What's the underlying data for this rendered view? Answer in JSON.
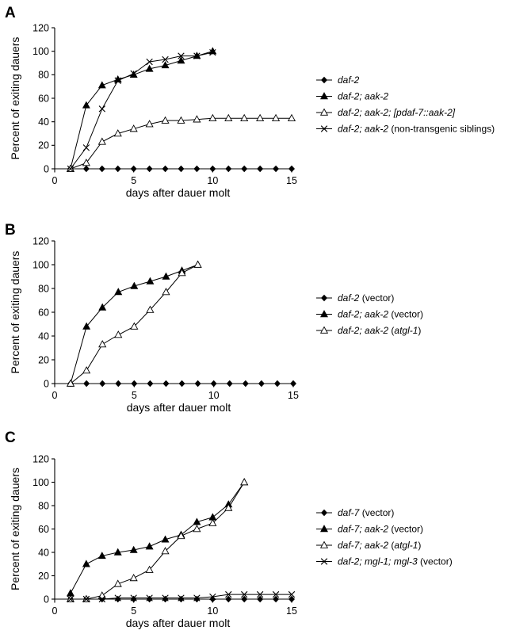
{
  "chart_data": [
    {
      "panel": "A",
      "type": "line",
      "ylabel": "Percent of exiting dauers",
      "xlabel": "days after dauer molt",
      "xlim": [
        0,
        15
      ],
      "ylim": [
        0,
        120
      ],
      "x_ticks": [
        0,
        5,
        10,
        15
      ],
      "y_ticks": [
        0,
        20,
        40,
        60,
        80,
        100,
        120
      ],
      "series": [
        {
          "marker": "diamond",
          "legend": [
            {
              "text": "daf-2",
              "italic": true
            }
          ],
          "points": [
            [
              1,
              0
            ],
            [
              2,
              0
            ],
            [
              3,
              0
            ],
            [
              4,
              0
            ],
            [
              5,
              0
            ],
            [
              6,
              0
            ],
            [
              7,
              0
            ],
            [
              8,
              0
            ],
            [
              9,
              0
            ],
            [
              10,
              0
            ],
            [
              11,
              0
            ],
            [
              12,
              0
            ],
            [
              13,
              0
            ],
            [
              14,
              0
            ],
            [
              15,
              0
            ]
          ]
        },
        {
          "marker": "triangle-filled",
          "legend": [
            {
              "text": "daf-2; aak-2",
              "italic": true
            }
          ],
          "points": [
            [
              1,
              0
            ],
            [
              2,
              54
            ],
            [
              3,
              71
            ],
            [
              4,
              76
            ],
            [
              5,
              80
            ],
            [
              6,
              85
            ],
            [
              7,
              88
            ],
            [
              8,
              92
            ],
            [
              9,
              96
            ],
            [
              10,
              100
            ]
          ]
        },
        {
          "marker": "triangle-open",
          "legend": [
            {
              "text": "daf-2; aak-2; [pdaf-7::aak-2]",
              "italic": true
            }
          ],
          "points": [
            [
              1,
              0
            ],
            [
              2,
              5
            ],
            [
              3,
              23
            ],
            [
              4,
              30
            ],
            [
              5,
              34
            ],
            [
              6,
              38
            ],
            [
              7,
              41
            ],
            [
              8,
              41
            ],
            [
              9,
              42
            ],
            [
              10,
              43
            ],
            [
              11,
              43
            ],
            [
              12,
              43
            ],
            [
              13,
              43
            ],
            [
              14,
              43
            ],
            [
              15,
              43
            ]
          ]
        },
        {
          "marker": "x",
          "legend": [
            {
              "text": "daf-2; aak-2",
              "italic": true
            },
            {
              "text": " (non-transgenic siblings)",
              "italic": false
            }
          ],
          "points": [
            [
              1,
              0
            ],
            [
              2,
              18
            ],
            [
              3,
              51
            ],
            [
              4,
              75
            ],
            [
              5,
              81
            ],
            [
              6,
              91
            ],
            [
              7,
              93
            ],
            [
              8,
              96
            ],
            [
              9,
              96
            ],
            [
              10,
              99
            ]
          ]
        }
      ]
    },
    {
      "panel": "B",
      "type": "line",
      "ylabel": "Percent of exiting dauers",
      "xlabel": "days after dauer molt",
      "xlim": [
        0,
        15
      ],
      "ylim": [
        0,
        120
      ],
      "x_ticks": [
        0,
        5,
        10,
        15
      ],
      "y_ticks": [
        0,
        20,
        40,
        60,
        80,
        100,
        120
      ],
      "series": [
        {
          "marker": "diamond",
          "legend": [
            {
              "text": "daf-2",
              "italic": true
            },
            {
              "text": " (vector)",
              "italic": false
            }
          ],
          "points": [
            [
              1,
              0
            ],
            [
              2,
              0
            ],
            [
              3,
              0
            ],
            [
              4,
              0
            ],
            [
              5,
              0
            ],
            [
              6,
              0
            ],
            [
              7,
              0
            ],
            [
              8,
              0
            ],
            [
              9,
              0
            ],
            [
              10,
              0
            ],
            [
              11,
              0
            ],
            [
              12,
              0
            ],
            [
              13,
              0
            ],
            [
              14,
              0
            ],
            [
              15,
              0
            ]
          ]
        },
        {
          "marker": "triangle-filled",
          "legend": [
            {
              "text": "daf-2; aak-2",
              "italic": true
            },
            {
              "text": " (vector)",
              "italic": false
            }
          ],
          "points": [
            [
              1,
              0
            ],
            [
              2,
              48
            ],
            [
              3,
              64
            ],
            [
              4,
              77
            ],
            [
              5,
              82
            ],
            [
              6,
              86
            ],
            [
              7,
              90
            ],
            [
              8,
              95
            ],
            [
              9,
              100
            ]
          ]
        },
        {
          "marker": "triangle-open",
          "legend": [
            {
              "text": "daf-2; aak-2",
              "italic": true
            },
            {
              "text": " (",
              "italic": false
            },
            {
              "text": "atgl-1",
              "italic": true
            },
            {
              "text": ")",
              "italic": false
            }
          ],
          "points": [
            [
              1,
              0
            ],
            [
              2,
              11
            ],
            [
              3,
              33
            ],
            [
              4,
              41
            ],
            [
              5,
              48
            ],
            [
              6,
              62
            ],
            [
              7,
              77
            ],
            [
              8,
              93
            ],
            [
              9,
              100
            ]
          ]
        }
      ]
    },
    {
      "panel": "C",
      "type": "line",
      "ylabel": "Percent of exiting dauers",
      "xlabel": "days after dauer molt",
      "xlim": [
        0,
        15
      ],
      "ylim": [
        0,
        120
      ],
      "x_ticks": [
        0,
        5,
        10,
        15
      ],
      "y_ticks": [
        0,
        20,
        40,
        60,
        80,
        100,
        120
      ],
      "series": [
        {
          "marker": "diamond",
          "legend": [
            {
              "text": "daf-7",
              "italic": true
            },
            {
              "text": " (vector)",
              "italic": false
            }
          ],
          "points": [
            [
              1,
              0
            ],
            [
              2,
              0
            ],
            [
              3,
              0
            ],
            [
              4,
              0
            ],
            [
              5,
              0
            ],
            [
              6,
              0
            ],
            [
              7,
              0
            ],
            [
              8,
              0
            ],
            [
              9,
              0
            ],
            [
              10,
              0
            ],
            [
              11,
              0
            ],
            [
              12,
              0
            ],
            [
              13,
              0
            ],
            [
              14,
              0
            ],
            [
              15,
              0
            ]
          ]
        },
        {
          "marker": "triangle-filled",
          "legend": [
            {
              "text": "daf-7; aak-2",
              "italic": true
            },
            {
              "text": " (vector)",
              "italic": false
            }
          ],
          "points": [
            [
              1,
              5
            ],
            [
              2,
              30
            ],
            [
              3,
              37
            ],
            [
              4,
              40
            ],
            [
              5,
              42
            ],
            [
              6,
              45
            ],
            [
              7,
              51
            ],
            [
              8,
              55
            ],
            [
              9,
              66
            ],
            [
              10,
              70
            ],
            [
              11,
              81
            ],
            [
              12,
              100
            ]
          ]
        },
        {
          "marker": "triangle-open",
          "legend": [
            {
              "text": "daf-7; aak-2",
              "italic": true
            },
            {
              "text": " (",
              "italic": false
            },
            {
              "text": "atgl-1",
              "italic": true
            },
            {
              "text": ")",
              "italic": false
            }
          ],
          "points": [
            [
              1,
              0
            ],
            [
              2,
              0
            ],
            [
              3,
              3
            ],
            [
              4,
              13
            ],
            [
              5,
              18
            ],
            [
              6,
              25
            ],
            [
              7,
              41
            ],
            [
              8,
              54
            ],
            [
              9,
              60
            ],
            [
              10,
              65
            ],
            [
              11,
              78
            ],
            [
              12,
              100
            ]
          ]
        },
        {
          "marker": "x",
          "legend": [
            {
              "text": "daf-2; mgl-1; mgl-3",
              "italic": true
            },
            {
              "text": " (vector)",
              "italic": false
            }
          ],
          "points": [
            [
              1,
              0
            ],
            [
              2,
              0
            ],
            [
              3,
              0
            ],
            [
              4,
              1
            ],
            [
              5,
              1
            ],
            [
              6,
              1
            ],
            [
              7,
              1
            ],
            [
              8,
              1
            ],
            [
              9,
              1
            ],
            [
              10,
              2
            ],
            [
              11,
              4
            ],
            [
              12,
              4
            ],
            [
              13,
              4
            ],
            [
              14,
              4
            ],
            [
              15,
              4
            ]
          ]
        }
      ]
    }
  ]
}
